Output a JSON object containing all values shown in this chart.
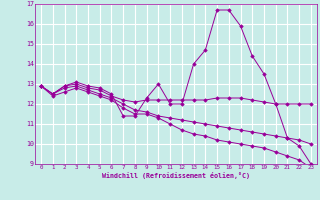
{
  "xlabel": "Windchill (Refroidissement éolien,°C)",
  "bg_color": "#c8ece8",
  "grid_color": "#ffffff",
  "line_color": "#990099",
  "xlim": [
    -0.5,
    23.5
  ],
  "ylim": [
    9,
    17
  ],
  "xticks": [
    0,
    1,
    2,
    3,
    4,
    5,
    6,
    7,
    8,
    9,
    10,
    11,
    12,
    13,
    14,
    15,
    16,
    17,
    18,
    19,
    20,
    21,
    22,
    23
  ],
  "yticks": [
    9,
    10,
    11,
    12,
    13,
    14,
    15,
    16,
    17
  ],
  "series": [
    [
      12.9,
      12.5,
      12.9,
      13.1,
      12.9,
      12.8,
      12.5,
      11.4,
      11.4,
      12.3,
      13.0,
      12.0,
      12.0,
      14.0,
      14.7,
      16.7,
      16.7,
      15.9,
      14.4,
      13.5,
      12.0,
      10.3,
      9.9,
      9.0
    ],
    [
      12.9,
      12.5,
      12.9,
      13.0,
      12.8,
      12.7,
      12.4,
      12.2,
      12.1,
      12.2,
      12.2,
      12.2,
      12.2,
      12.2,
      12.2,
      12.3,
      12.3,
      12.3,
      12.2,
      12.1,
      12.0,
      12.0,
      12.0,
      12.0
    ],
    [
      12.9,
      12.5,
      12.8,
      12.9,
      12.7,
      12.5,
      12.3,
      12.0,
      11.7,
      11.6,
      11.4,
      11.3,
      11.2,
      11.1,
      11.0,
      10.9,
      10.8,
      10.7,
      10.6,
      10.5,
      10.4,
      10.3,
      10.2,
      10.0
    ],
    [
      12.9,
      12.4,
      12.6,
      12.8,
      12.6,
      12.4,
      12.2,
      11.8,
      11.5,
      11.5,
      11.3,
      11.0,
      10.7,
      10.5,
      10.4,
      10.2,
      10.1,
      10.0,
      9.9,
      9.8,
      9.6,
      9.4,
      9.2,
      8.8
    ]
  ]
}
